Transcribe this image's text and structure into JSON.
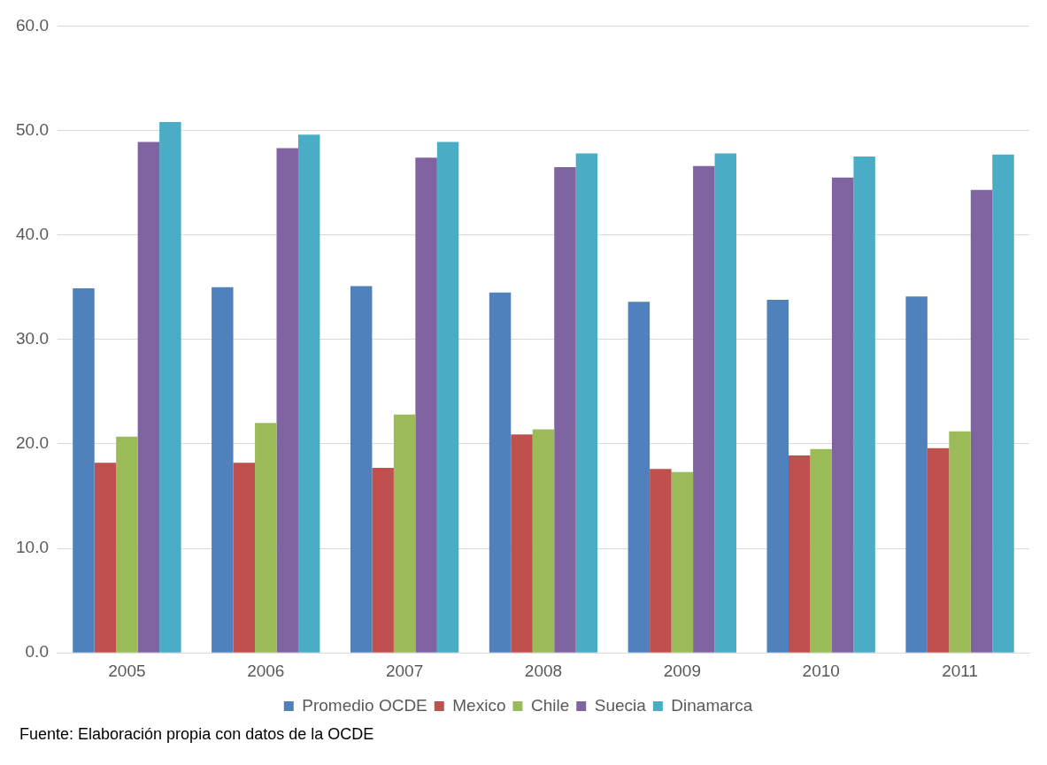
{
  "chart_data": {
    "type": "bar",
    "categories": [
      "2005",
      "2006",
      "2007",
      "2008",
      "2009",
      "2010",
      "2011"
    ],
    "series": [
      {
        "name": "Promedio OCDE",
        "color": "#4f81bd",
        "values": [
          34.9,
          35.0,
          35.1,
          34.5,
          33.6,
          33.8,
          34.1
        ]
      },
      {
        "name": "Mexico",
        "color": "#c0504d",
        "values": [
          18.2,
          18.2,
          17.7,
          20.9,
          17.6,
          18.9,
          19.6
        ]
      },
      {
        "name": "Chile",
        "color": "#9bbb59",
        "values": [
          20.7,
          22.0,
          22.8,
          21.4,
          17.3,
          19.5,
          21.2
        ]
      },
      {
        "name": "Suecia",
        "color": "#8064a2",
        "values": [
          48.9,
          48.3,
          47.4,
          46.5,
          46.6,
          45.5,
          44.3
        ]
      },
      {
        "name": "Dinamarca",
        "color": "#4bacc6",
        "values": [
          50.8,
          49.6,
          48.9,
          47.8,
          47.8,
          47.5,
          47.7
        ]
      }
    ],
    "ylim": [
      0,
      60
    ],
    "yticks": [
      {
        "value": 0,
        "label": "0.0"
      },
      {
        "value": 10,
        "label": "10.0"
      },
      {
        "value": 20,
        "label": "20.0"
      },
      {
        "value": 30,
        "label": "30.0"
      },
      {
        "value": 40,
        "label": "40.0"
      },
      {
        "value": 50,
        "label": "50.0"
      },
      {
        "value": 60,
        "label": "60.0"
      }
    ],
    "grid": "y",
    "legend": "bottom",
    "annotations": [
      "Fuente: Elaboración propia con datos de la OCDE"
    ]
  }
}
